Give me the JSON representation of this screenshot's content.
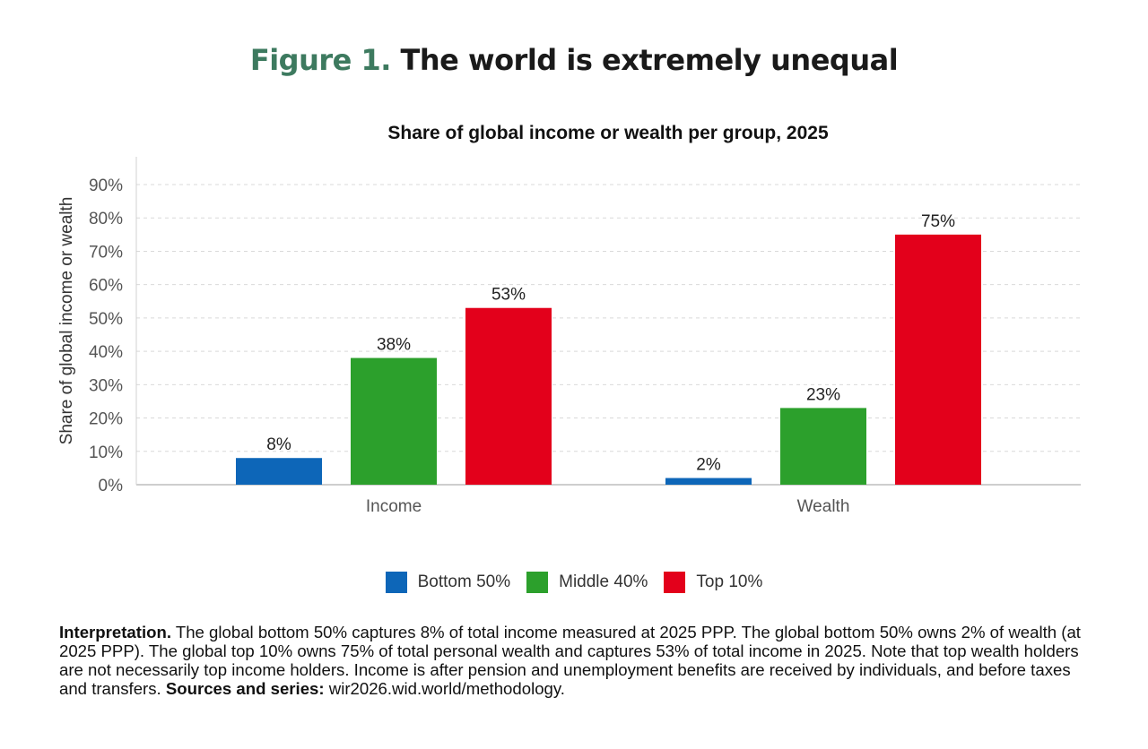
{
  "heading": {
    "figure_label": "Figure 1.",
    "title": "The world is extremely unequal"
  },
  "chart_data": {
    "type": "bar",
    "title": "Share of global income or wealth per group, 2025",
    "xlabel": "",
    "ylabel": "Share of global income or wealth",
    "categories": [
      "Income",
      "Wealth"
    ],
    "series": [
      {
        "name": "Bottom 50%",
        "color": "#0d66b8",
        "values": [
          8,
          2
        ],
        "labels": [
          "8%",
          "2%"
        ]
      },
      {
        "name": "Middle 40%",
        "color": "#2ca02c",
        "values": [
          38,
          23
        ],
        "labels": [
          "38%",
          "23%"
        ]
      },
      {
        "name": "Top 10%",
        "color": "#e3001b",
        "values": [
          53,
          75
        ],
        "labels": [
          "53%",
          "75%"
        ]
      }
    ],
    "ylim": [
      0,
      90
    ],
    "yticks": [
      0,
      10,
      20,
      30,
      40,
      50,
      60,
      70,
      80,
      90
    ],
    "ytick_labels": [
      "0%",
      "10%",
      "20%",
      "30%",
      "40%",
      "50%",
      "60%",
      "70%",
      "80%",
      "90%"
    ],
    "grid": true,
    "legend_position": "bottom"
  },
  "interpretation": {
    "lead": "Interpretation.",
    "body": " The global bottom 50% captures 8% of total income measured at 2025 PPP. The global bottom 50% owns 2% of wealth (at 2025 PPP). The global top 10% owns 75% of total personal wealth and captures 53% of total income in 2025. Note that top wealth holders are not necessarily top income holders. Income is after pension and unemployment benefits are received by individuals, and before taxes and transfers. ",
    "sources_label": "Sources and series:",
    "sources_value": " wir2026.wid.world/methodology."
  }
}
